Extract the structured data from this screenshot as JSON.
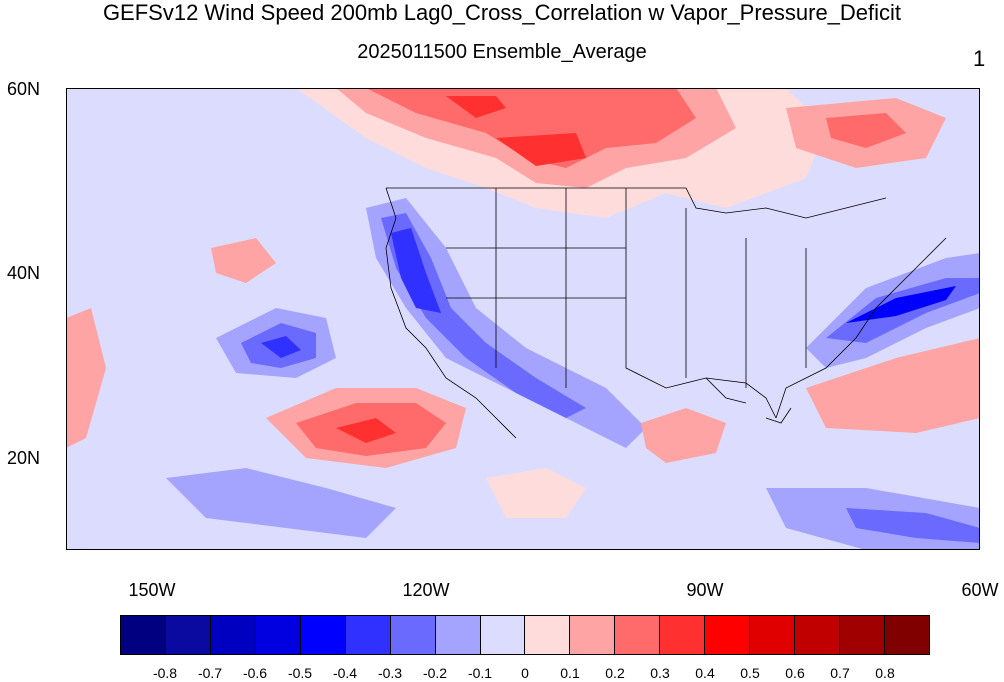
{
  "title": "GEFSv12 Wind Speed 200mb Lag0_Cross_Correlation w Vapor_Pressure_Deficit",
  "subtitle": "2025011500 Ensemble_Average",
  "corner_label": "1",
  "axes": {
    "latitude_labels": [
      "60N",
      "40N",
      "20N"
    ],
    "longitude_labels": [
      "150W",
      "120W",
      "90W",
      "60W"
    ]
  },
  "colorbar": {
    "colors": [
      "#000080",
      "#0a0aa0",
      "#0000c0",
      "#0000e0",
      "#0000ff",
      "#3030ff",
      "#6a6aff",
      "#a4a4ff",
      "#dcdcff",
      "#ffdcdc",
      "#ffa4a4",
      "#ff6a6a",
      "#ff3030",
      "#ff0000",
      "#e00000",
      "#c00000",
      "#a00000",
      "#800000"
    ],
    "labels": [
      "-0.8",
      "-0.7",
      "-0.6",
      "-0.5",
      "-0.4",
      "-0.3",
      "-0.2",
      "-0.1",
      "0",
      "0.1",
      "0.2",
      "0.3",
      "0.4",
      "0.5",
      "0.6",
      "0.7",
      "0.8"
    ]
  }
}
